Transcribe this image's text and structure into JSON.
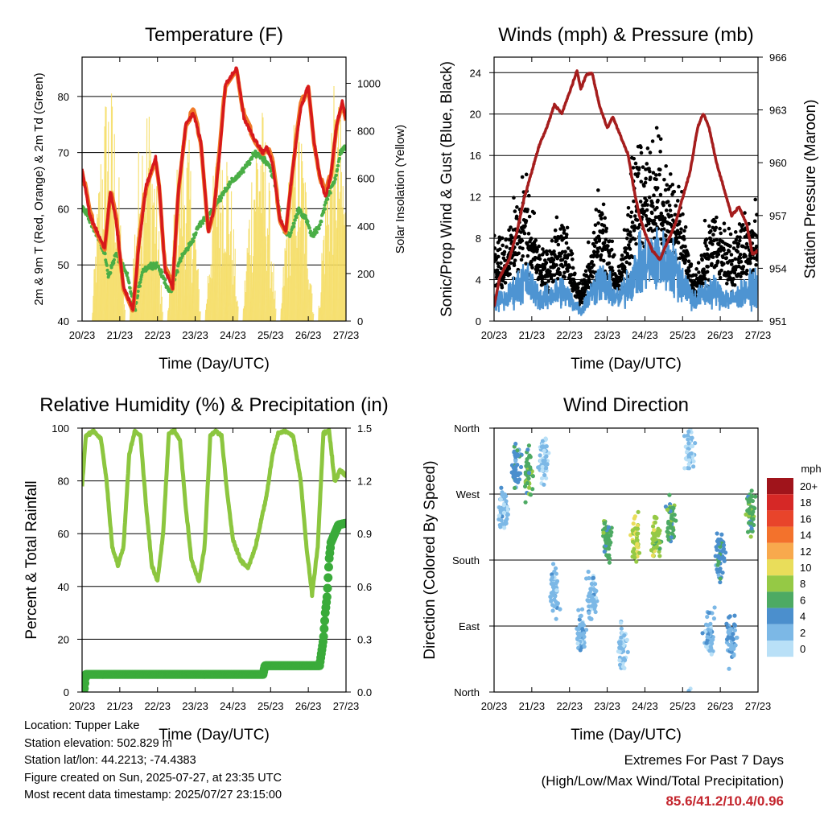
{
  "chart_data": [
    {
      "type": "line",
      "title": "Temperature (F)",
      "xlabel": "Time (Day/UTC)",
      "ylabel": "2m & 9m T (Red, Orange) & 2m Td (Green)",
      "y2label": "Solar Insolation (Yellow)",
      "x_ticks": [
        "20/23",
        "21/23",
        "22/23",
        "23/23",
        "24/23",
        "25/23",
        "26/23",
        "27/23"
      ],
      "ylim": [
        40,
        87
      ],
      "y2lim": [
        0,
        1110
      ],
      "yticks": [
        40,
        50,
        60,
        70,
        80
      ],
      "y2ticks": [
        0,
        200,
        400,
        600,
        800,
        1000
      ],
      "grid": true,
      "colors": {
        "t2m": "#d7191c",
        "t9m": "#f07a28",
        "td": "#4aae46",
        "solar": "#f5dc60"
      },
      "series": [
        {
          "name": "2m T",
          "x": [
            0,
            0.2,
            0.45,
            0.6,
            0.75,
            0.9,
            1.1,
            1.35,
            1.5,
            1.7,
            1.95,
            2.05,
            2.2,
            2.4,
            2.55,
            2.75,
            2.95,
            3.15,
            3.35,
            3.5,
            3.65,
            3.8,
            4.1,
            4.3,
            4.6,
            4.8,
            4.9,
            5.05,
            5.25,
            5.4,
            5.6,
            5.8,
            6.0,
            6.15,
            6.3,
            6.45,
            6.6,
            6.75,
            6.9,
            7.0
          ],
          "values": [
            67,
            59,
            55,
            53,
            63,
            58,
            46,
            42,
            53,
            64,
            69,
            64,
            49,
            46,
            63,
            75,
            77,
            72,
            56,
            60,
            70,
            82,
            85,
            76,
            72,
            70,
            71,
            68,
            58,
            56,
            68,
            78,
            82,
            72,
            66,
            62,
            66,
            75,
            79,
            76
          ]
        },
        {
          "name": "9m T",
          "x": [
            0,
            0.5,
            1.0,
            1.5,
            2.0,
            2.5,
            3.0,
            3.5,
            4.0,
            4.5,
            5.0,
            5.5,
            6.0,
            6.5,
            7.0
          ],
          "values": [
            66,
            56,
            55,
            52,
            67,
            50,
            76,
            58,
            82,
            71,
            69,
            57,
            81,
            61,
            76
          ]
        },
        {
          "name": "2m Td",
          "x": [
            0,
            0.15,
            0.35,
            0.6,
            0.7,
            0.9,
            1.2,
            1.4,
            1.6,
            1.85,
            2.0,
            2.2,
            2.35,
            2.6,
            2.9,
            3.1,
            3.5,
            3.75,
            4.0,
            4.3,
            4.6,
            4.8,
            4.95,
            5.1,
            5.3,
            5.5,
            5.75,
            5.95,
            6.1,
            6.3,
            6.5,
            6.7,
            6.85,
            7.0
          ],
          "values": [
            60,
            59,
            56,
            52,
            48,
            52,
            48,
            42,
            49,
            50,
            50,
            47,
            45,
            51,
            54,
            57,
            60,
            63,
            65,
            67,
            70,
            69,
            68,
            65,
            57,
            55,
            60,
            58,
            55,
            57,
            62,
            65,
            70,
            71
          ]
        },
        {
          "name": "Solar Insolation",
          "axis": "y2",
          "day_peaks_x": [
            0.7,
            1.7,
            2.7,
            3.7,
            4.7,
            5.7,
            6.7
          ],
          "peak_values": [
            1050,
            1000,
            850,
            900,
            950,
            900,
            1000
          ]
        }
      ]
    },
    {
      "type": "scatter",
      "title": "Winds (mph) & Pressure (mb)",
      "xlabel": "Time (Day/UTC)",
      "ylabel": "Sonic/Prop Wind & Gust (Blue, Black)",
      "y2label": "Station Pressure (Maroon)",
      "x_ticks": [
        "20/23",
        "21/23",
        "22/23",
        "23/23",
        "24/23",
        "25/23",
        "26/23",
        "27/23"
      ],
      "ylim": [
        0,
        25.5
      ],
      "y2lim": [
        951,
        966
      ],
      "yticks": [
        0,
        4,
        8,
        12,
        16,
        20,
        24
      ],
      "y2ticks": [
        951,
        954,
        957,
        960,
        963,
        966
      ],
      "grid": true,
      "colors": {
        "wind": "#4e94d2",
        "gust": "#000000",
        "pressure": "#a51d1d"
      },
      "series": [
        {
          "name": "Station Pressure",
          "axis": "y2",
          "x": [
            0,
            0.15,
            0.4,
            0.6,
            0.8,
            1.0,
            1.2,
            1.4,
            1.6,
            1.8,
            2.0,
            2.2,
            2.3,
            2.45,
            2.6,
            2.8,
            3.0,
            3.15,
            3.3,
            3.45,
            3.55,
            3.7,
            3.85,
            4.0,
            4.2,
            4.4,
            4.6,
            4.8,
            5.0,
            5.2,
            5.4,
            5.55,
            5.7,
            5.9,
            6.1,
            6.3,
            6.5,
            6.7,
            6.85,
            7.0
          ],
          "values": [
            951.8,
            953.5,
            954.5,
            956.0,
            958.0,
            959.5,
            961.0,
            962.0,
            963.3,
            962.8,
            964.0,
            965.2,
            964.2,
            965.0,
            965.1,
            963.2,
            962.0,
            962.6,
            961.8,
            961.0,
            960.5,
            958.6,
            957.0,
            956.0,
            955.0,
            954.5,
            955.5,
            956.5,
            958.0,
            959.5,
            962.0,
            962.8,
            962.0,
            960.0,
            958.5,
            957.0,
            957.5,
            956.5,
            954.8,
            955.0
          ]
        },
        {
          "name": "Sonic/Prop Wind",
          "daily_mean_x": [
            0.3,
            0.8,
            1.3,
            1.8,
            2.3,
            2.8,
            3.3,
            3.8,
            4.3,
            4.8,
            5.3,
            5.8,
            6.3,
            6.8
          ],
          "daily_mean": [
            2,
            4,
            2,
            3,
            1,
            4,
            2,
            5,
            6,
            5,
            2,
            3,
            2,
            3
          ]
        },
        {
          "name": "Gust",
          "daily_mean_x": [
            0.3,
            0.8,
            1.3,
            1.8,
            2.3,
            2.8,
            3.3,
            3.8,
            4.3,
            4.8,
            5.3,
            5.8,
            6.3,
            6.8
          ],
          "daily_mean": [
            5,
            9,
            4,
            7,
            2,
            8,
            3,
            12,
            11,
            9,
            3,
            7,
            5,
            7
          ]
        }
      ]
    },
    {
      "type": "line",
      "title": "Relative Humidity (%) & Precipitation (in)",
      "xlabel": "Time (Day/UTC)",
      "ylabel": "Percent & Total Rainfall",
      "x_ticks": [
        "20/23",
        "21/23",
        "22/23",
        "23/23",
        "24/23",
        "25/23",
        "26/23",
        "27/23"
      ],
      "ylim": [
        0,
        100
      ],
      "y2lim": [
        0,
        1.5
      ],
      "yticks": [
        0,
        20,
        40,
        60,
        80,
        100
      ],
      "y2ticks": [
        "0.0",
        "0.3",
        "0.6",
        "0.9",
        "1.2",
        "1.5"
      ],
      "grid": true,
      "colors": {
        "rh": "#8cc63f",
        "precip": "#3aab3a"
      },
      "series": [
        {
          "name": "Relative Humidity",
          "x": [
            0,
            0.1,
            0.3,
            0.5,
            0.65,
            0.8,
            0.95,
            1.1,
            1.25,
            1.4,
            1.55,
            1.7,
            1.85,
            2.0,
            2.15,
            2.3,
            2.45,
            2.6,
            2.75,
            2.9,
            3.1,
            3.25,
            3.4,
            3.55,
            3.7,
            3.85,
            4.0,
            4.2,
            4.4,
            4.6,
            4.75,
            4.9,
            5.05,
            5.2,
            5.4,
            5.6,
            5.8,
            5.95,
            6.1,
            6.25,
            6.4,
            6.55,
            6.7,
            6.85,
            7.0
          ],
          "values": [
            78,
            97,
            99,
            96,
            80,
            55,
            48,
            55,
            90,
            99,
            97,
            70,
            48,
            42,
            60,
            98,
            99,
            95,
            70,
            50,
            42,
            55,
            97,
            99,
            97,
            75,
            58,
            50,
            47,
            55,
            65,
            75,
            90,
            98,
            99,
            97,
            80,
            55,
            37,
            55,
            98,
            99,
            80,
            84,
            82
          ]
        },
        {
          "name": "Total Precipitation",
          "axis": "y2",
          "x": [
            0,
            0.05,
            0.1,
            1.0,
            2.0,
            3.0,
            4.0,
            4.8,
            4.85,
            5.5,
            6.3,
            6.4,
            6.45,
            6.5,
            6.55,
            6.6,
            6.7,
            6.8,
            7.0
          ],
          "values": [
            0.0,
            0.0,
            0.1,
            0.1,
            0.1,
            0.1,
            0.1,
            0.1,
            0.15,
            0.15,
            0.15,
            0.3,
            0.45,
            0.55,
            0.75,
            0.85,
            0.9,
            0.95,
            0.96
          ]
        }
      ]
    },
    {
      "type": "scatter",
      "title": "Wind Direction",
      "xlabel": "Time (Day/UTC)",
      "ylabel": "Direction (Colored By Speed)",
      "x_ticks": [
        "20/23",
        "21/23",
        "22/23",
        "23/23",
        "24/23",
        "25/23",
        "26/23",
        "27/23"
      ],
      "y_ticks": [
        "North",
        "East",
        "South",
        "West",
        "North"
      ],
      "ylim": [
        0,
        360
      ],
      "grid": true,
      "colorbar": {
        "title": "mph",
        "labels": [
          "20+",
          "18",
          "16",
          "14",
          "12",
          "10",
          "8",
          "6",
          "4",
          "2",
          "0"
        ],
        "colors": [
          "#a0141b",
          "#d62826",
          "#e8442b",
          "#f3722c",
          "#f8a94d",
          "#e9dd5a",
          "#95c945",
          "#4daa63",
          "#4b8fcd",
          "#7cb8e6",
          "#b9e0f7"
        ]
      },
      "series": [
        {
          "name": "Wind Direction",
          "cluster_x": [
            0.25,
            0.6,
            0.9,
            1.3,
            1.6,
            2.3,
            2.6,
            3.0,
            3.4,
            3.75,
            4.3,
            4.7,
            5.2,
            5.7,
            6.0,
            6.3,
            6.8
          ],
          "cluster_deg": [
            250,
            310,
            300,
            320,
            140,
            80,
            130,
            210,
            60,
            210,
            210,
            230,
            330,
            80,
            190,
            70,
            250
          ],
          "cluster_speed": [
            2,
            4,
            6,
            1,
            2,
            2,
            2,
            6,
            1,
            9,
            8,
            6,
            1,
            2,
            4,
            3,
            6
          ]
        }
      ]
    }
  ],
  "footer": {
    "location": "Location: Tupper Lake",
    "elevation": "Station elevation: 502.829 m",
    "latlon": "Station lat/lon: 44.2213; -74.4383",
    "created": "Figure created on Sun, 2025-07-27, at 23:35 UTC",
    "recent": "Most recent data timestamp: 2025/07/27 23:15:00"
  },
  "extremes": {
    "title": "Extremes For Past 7 Days",
    "subtitle": "(High/Low/Max Wind/Total Precipitation)",
    "values": "85.6/41.2/10.4/0.96"
  }
}
